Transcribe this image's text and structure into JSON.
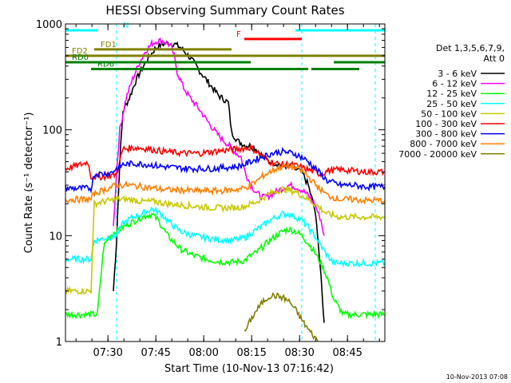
{
  "chart_data": {
    "type": "line",
    "title": "HESSI Observing Summary Count Rates",
    "xlabel": "Start Time (10-Nov-13 07:16:42)",
    "ylabel": "Count Rate (s⁻¹ detector⁻¹)",
    "x_unit": "minutes after 07:16:42 UT",
    "xlim": [
      0,
      100
    ],
    "ylim": [
      1,
      1000
    ],
    "yscale": "log",
    "x_ticks": [
      {
        "x": 13.3,
        "label": "07:30"
      },
      {
        "x": 28.3,
        "label": "07:45"
      },
      {
        "x": 43.3,
        "label": "08:00"
      },
      {
        "x": 58.3,
        "label": "08:15"
      },
      {
        "x": 73.3,
        "label": "08:30"
      },
      {
        "x": 88.3,
        "label": "08:45"
      }
    ],
    "y_ticks": [
      {
        "y": 1,
        "label": "1"
      },
      {
        "y": 10,
        "label": "10"
      },
      {
        "y": 100,
        "label": "100"
      },
      {
        "y": 1000,
        "label": "1000"
      }
    ],
    "legend": {
      "placement": "right",
      "header": [
        "Det 1,3,5,6,7,9,",
        "Att 0"
      ]
    },
    "series": [
      {
        "name": "3 - 6 keV",
        "color": "#000000",
        "points": [
          [
            15,
            3
          ],
          [
            16,
            9
          ],
          [
            17,
            50
          ],
          [
            18,
            150
          ],
          [
            20,
            200
          ],
          [
            22,
            290
          ],
          [
            24,
            380
          ],
          [
            26,
            480
          ],
          [
            28,
            580
          ],
          [
            30,
            640
          ],
          [
            32,
            660
          ],
          [
            34,
            650
          ],
          [
            36,
            600
          ],
          [
            38,
            520
          ],
          [
            40,
            440
          ],
          [
            42,
            360
          ],
          [
            44,
            300
          ],
          [
            46,
            250
          ],
          [
            48,
            210
          ],
          [
            50,
            190
          ],
          [
            51,
            180
          ],
          [
            52,
            95
          ],
          [
            54,
            78
          ],
          [
            56,
            72
          ],
          [
            58,
            70
          ],
          [
            60,
            65
          ],
          [
            62,
            55
          ],
          [
            64,
            50
          ],
          [
            66,
            48
          ],
          [
            70,
            45
          ],
          [
            74,
            40
          ],
          [
            76,
            30
          ],
          [
            78,
            18
          ],
          [
            79,
            10
          ],
          [
            80,
            4
          ],
          [
            81,
            1.5
          ]
        ]
      },
      {
        "name": "6 - 12 keV",
        "color": "#ff00ff",
        "points": [
          [
            15,
            12
          ],
          [
            16,
            40
          ],
          [
            17,
            100
          ],
          [
            19,
            200
          ],
          [
            21,
            300
          ],
          [
            23,
            420
          ],
          [
            25,
            550
          ],
          [
            27,
            650
          ],
          [
            29,
            700
          ],
          [
            31,
            680
          ],
          [
            33,
            620
          ],
          [
            34,
            500
          ],
          [
            35,
            350
          ],
          [
            37,
            250
          ],
          [
            39,
            200
          ],
          [
            41,
            170
          ],
          [
            43,
            140
          ],
          [
            45,
            115
          ],
          [
            47,
            95
          ],
          [
            49,
            82
          ],
          [
            51,
            72
          ],
          [
            53,
            62
          ],
          [
            55,
            55
          ],
          [
            56,
            42
          ],
          [
            58,
            30
          ],
          [
            60,
            25
          ],
          [
            62,
            23
          ],
          [
            64,
            24
          ],
          [
            66,
            26
          ],
          [
            68,
            28
          ],
          [
            70,
            30
          ],
          [
            72,
            29
          ],
          [
            74,
            27
          ],
          [
            76,
            24
          ],
          [
            78,
            20
          ],
          [
            80,
            14
          ],
          [
            81,
            10
          ]
        ]
      },
      {
        "name": "12 - 25 keV",
        "color": "#00ff00",
        "points": [
          [
            0,
            1.8
          ],
          [
            10,
            1.8
          ],
          [
            12,
            8
          ],
          [
            14,
            10
          ],
          [
            16,
            11
          ],
          [
            18,
            12
          ],
          [
            20,
            13
          ],
          [
            22,
            14
          ],
          [
            24,
            15
          ],
          [
            27,
            16
          ],
          [
            29,
            14
          ],
          [
            32,
            10
          ],
          [
            36,
            7.5
          ],
          [
            40,
            6.5
          ],
          [
            44,
            6
          ],
          [
            48,
            5.7
          ],
          [
            52,
            5.6
          ],
          [
            56,
            5.8
          ],
          [
            58,
            6.5
          ],
          [
            60,
            7
          ],
          [
            62,
            8
          ],
          [
            64,
            9
          ],
          [
            66,
            10
          ],
          [
            68,
            11
          ],
          [
            70,
            11.5
          ],
          [
            72,
            11
          ],
          [
            74,
            10
          ],
          [
            76,
            8.5
          ],
          [
            78,
            7
          ],
          [
            80,
            5.5
          ],
          [
            82,
            4
          ],
          [
            84,
            2.5
          ],
          [
            87,
            1.8
          ],
          [
            100,
            1.8
          ]
        ]
      },
      {
        "name": "25 - 50 keV",
        "color": "#00ffff",
        "points": [
          [
            0,
            6
          ],
          [
            8,
            6
          ],
          [
            9,
            9
          ],
          [
            16,
            10
          ],
          [
            18,
            13
          ],
          [
            21,
            15
          ],
          [
            24,
            16
          ],
          [
            27,
            18
          ],
          [
            30,
            16
          ],
          [
            33,
            13
          ],
          [
            36,
            11
          ],
          [
            40,
            10
          ],
          [
            44,
            9.5
          ],
          [
            48,
            9.2
          ],
          [
            52,
            9
          ],
          [
            56,
            9.5
          ],
          [
            58,
            10.5
          ],
          [
            60,
            11.5
          ],
          [
            62,
            12.5
          ],
          [
            64,
            14
          ],
          [
            66,
            15
          ],
          [
            68,
            16
          ],
          [
            70,
            16
          ],
          [
            72,
            15
          ],
          [
            74,
            14
          ],
          [
            76,
            12
          ],
          [
            78,
            10
          ],
          [
            80,
            8
          ],
          [
            82,
            6.5
          ],
          [
            84,
            5.5
          ],
          [
            100,
            5.5
          ]
        ]
      },
      {
        "name": "50 - 100 keV",
        "color": "#c8c800",
        "points": [
          [
            0,
            3
          ],
          [
            8,
            3
          ],
          [
            9,
            20
          ],
          [
            12,
            21
          ],
          [
            16,
            22
          ],
          [
            20,
            22
          ],
          [
            24,
            21
          ],
          [
            28,
            21
          ],
          [
            32,
            20
          ],
          [
            36,
            19.5
          ],
          [
            40,
            19
          ],
          [
            44,
            18.5
          ],
          [
            48,
            18.3
          ],
          [
            52,
            18.3
          ],
          [
            56,
            18.8
          ],
          [
            58,
            20
          ],
          [
            60,
            21
          ],
          [
            62,
            23
          ],
          [
            64,
            25
          ],
          [
            66,
            26.5
          ],
          [
            68,
            27.5
          ],
          [
            70,
            27
          ],
          [
            72,
            26
          ],
          [
            74,
            24
          ],
          [
            76,
            22
          ],
          [
            78,
            20
          ],
          [
            80,
            18
          ],
          [
            82,
            16
          ],
          [
            86,
            15
          ],
          [
            100,
            15
          ]
        ]
      },
      {
        "name": "100 - 300 keV",
        "color": "#ff0000",
        "points": [
          [
            0,
            43
          ],
          [
            6,
            48
          ],
          [
            7,
            50
          ],
          [
            8,
            36
          ],
          [
            12,
            36
          ],
          [
            16,
            38
          ],
          [
            18,
            66
          ],
          [
            22,
            68
          ],
          [
            26,
            66
          ],
          [
            30,
            63
          ],
          [
            34,
            61
          ],
          [
            38,
            60
          ],
          [
            42,
            60
          ],
          [
            46,
            62
          ],
          [
            50,
            64
          ],
          [
            54,
            66
          ],
          [
            58,
            68
          ],
          [
            60,
            62
          ],
          [
            62,
            55
          ],
          [
            64,
            50
          ],
          [
            66,
            48
          ],
          [
            68,
            47
          ],
          [
            70,
            47
          ],
          [
            72,
            46
          ],
          [
            74,
            44
          ],
          [
            76,
            42
          ],
          [
            78,
            40
          ],
          [
            80,
            38
          ],
          [
            82,
            41
          ],
          [
            86,
            42
          ],
          [
            90,
            41
          ],
          [
            94,
            40
          ],
          [
            100,
            40
          ]
        ]
      },
      {
        "name": "300 - 800 keV",
        "color": "#0000ff",
        "points": [
          [
            0,
            28
          ],
          [
            8,
            28
          ],
          [
            9,
            38
          ],
          [
            14,
            39
          ],
          [
            18,
            47
          ],
          [
            22,
            48
          ],
          [
            26,
            47
          ],
          [
            30,
            45
          ],
          [
            34,
            44
          ],
          [
            38,
            43
          ],
          [
            42,
            43
          ],
          [
            46,
            43
          ],
          [
            50,
            44
          ],
          [
            54,
            45
          ],
          [
            56,
            47
          ],
          [
            58,
            50
          ],
          [
            60,
            53
          ],
          [
            62,
            56
          ],
          [
            64,
            59
          ],
          [
            66,
            61
          ],
          [
            68,
            62
          ],
          [
            70,
            61
          ],
          [
            72,
            59
          ],
          [
            74,
            55
          ],
          [
            76,
            50
          ],
          [
            78,
            44
          ],
          [
            80,
            38
          ],
          [
            82,
            33
          ],
          [
            86,
            30
          ],
          [
            90,
            30
          ],
          [
            94,
            29
          ],
          [
            100,
            29
          ]
        ]
      },
      {
        "name": "800 - 7000 keV",
        "color": "#ff8000",
        "points": [
          [
            0,
            22
          ],
          [
            8,
            22
          ],
          [
            9,
            25
          ],
          [
            12,
            27
          ],
          [
            16,
            30
          ],
          [
            20,
            30
          ],
          [
            24,
            29
          ],
          [
            28,
            28
          ],
          [
            32,
            27
          ],
          [
            36,
            27
          ],
          [
            40,
            26.5
          ],
          [
            44,
            26.5
          ],
          [
            48,
            26.5
          ],
          [
            52,
            27
          ],
          [
            56,
            28
          ],
          [
            58,
            30
          ],
          [
            60,
            33
          ],
          [
            62,
            37
          ],
          [
            64,
            40
          ],
          [
            66,
            43
          ],
          [
            68,
            45
          ],
          [
            70,
            45
          ],
          [
            72,
            44
          ],
          [
            74,
            41
          ],
          [
            76,
            36
          ],
          [
            78,
            31
          ],
          [
            80,
            27
          ],
          [
            82,
            24
          ],
          [
            86,
            22
          ],
          [
            90,
            22
          ],
          [
            94,
            21.5
          ],
          [
            100,
            21.5
          ]
        ]
      },
      {
        "name": "7000 - 20000 keV",
        "color": "#808000",
        "points": [
          [
            56,
            1.2
          ],
          [
            58,
            1.6
          ],
          [
            60,
            2.0
          ],
          [
            62,
            2.4
          ],
          [
            64,
            2.7
          ],
          [
            66,
            2.7
          ],
          [
            68,
            2.6
          ],
          [
            70,
            2.4
          ],
          [
            72,
            2.0
          ],
          [
            74,
            1.6
          ],
          [
            76,
            1.3
          ],
          [
            78,
            1.1
          ],
          [
            79,
            1.0
          ]
        ]
      }
    ],
    "flag_bars": [
      {
        "label": "N",
        "color": "#00ffff",
        "y": 870,
        "segments": [
          [
            0,
            10
          ],
          [
            72,
            100
          ]
        ]
      },
      {
        "label": "F",
        "color": "#ff0000",
        "y": 720,
        "segments": [
          [
            56,
            74
          ]
        ]
      },
      {
        "label": "FD1",
        "color": "#808000",
        "y": 575,
        "segments": [
          [
            9,
            52
          ]
        ]
      },
      {
        "label": "FD2",
        "color": "#808000",
        "y": 500,
        "segments": [
          [
            0,
            100
          ]
        ]
      },
      {
        "label": "RD0",
        "color": "#008000",
        "y": 435,
        "segments": [
          [
            0,
            58
          ],
          [
            84,
            100
          ]
        ]
      },
      {
        "label": "RD6",
        "color": "#008000",
        "y": 375,
        "segments": [
          [
            8,
            58
          ],
          [
            58,
            76
          ],
          [
            77,
            92
          ]
        ]
      }
    ],
    "dashed_lines": [
      {
        "x": 16,
        "color": "#00ffff"
      },
      {
        "x": 74,
        "color": "#00ffff"
      },
      {
        "x": 97,
        "color": "#00ffff"
      }
    ],
    "grid": false,
    "footer_stamp": "10-Nov-2013 07:08"
  }
}
